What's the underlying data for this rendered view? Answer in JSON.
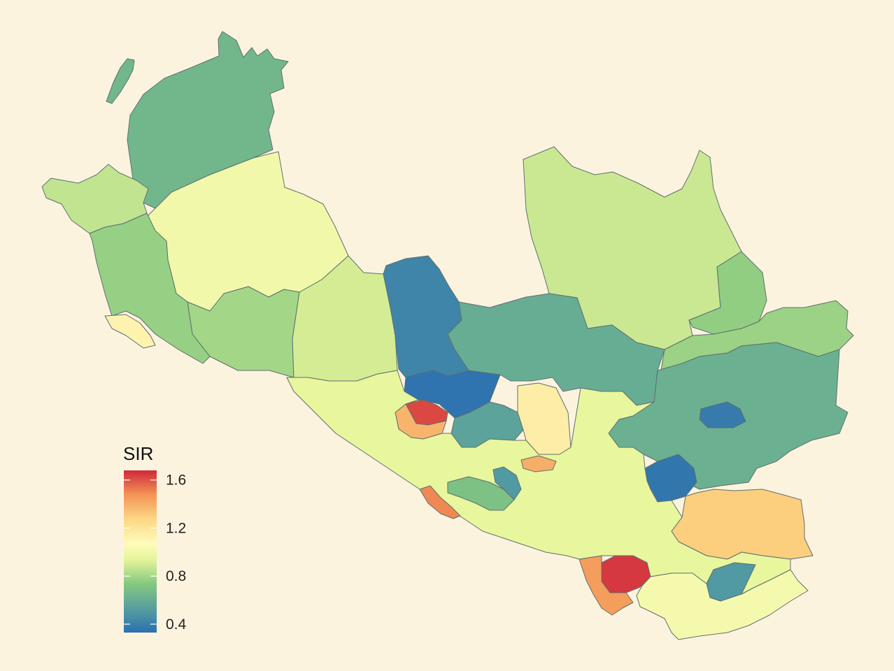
{
  "legend": {
    "title": "SIR",
    "ticks": [
      {
        "value": 1.6,
        "label": "1.6"
      },
      {
        "value": 1.2,
        "label": "1.2"
      },
      {
        "value": 0.8,
        "label": "0.8"
      },
      {
        "value": 0.4,
        "label": "0.4"
      }
    ],
    "range": [
      0.33,
      1.68
    ],
    "gradient_colors": [
      "#2b6fb0",
      "#4f97a4",
      "#85c87f",
      "#e6f59a",
      "#fffbbb",
      "#fcd784",
      "#f49456",
      "#d0283a"
    ]
  },
  "regions": [
    {
      "name": "north-island",
      "sir": 0.65
    },
    {
      "name": "northwest-large",
      "sir": 0.65
    },
    {
      "name": "west-tip",
      "sir": 0.86
    },
    {
      "name": "west-cream",
      "sir": 1.0
    },
    {
      "name": "west-mid-green",
      "sir": 0.8
    },
    {
      "name": "west-coast-lower",
      "sir": 0.77
    },
    {
      "name": "west-coast-small",
      "sir": 1.12
    },
    {
      "name": "center-west-yellow",
      "sir": 0.9
    },
    {
      "name": "center-blue",
      "sir": 0.42
    },
    {
      "name": "center-blue-south",
      "sir": 0.35
    },
    {
      "name": "northeast-large",
      "sir": 0.88
    },
    {
      "name": "east-green-upper",
      "sir": 0.76
    },
    {
      "name": "central-green",
      "sir": 0.6
    },
    {
      "name": "central-teal",
      "sir": 0.55
    },
    {
      "name": "central-orange",
      "sir": 1.15
    },
    {
      "name": "red-cluster-west",
      "sir": 1.62
    },
    {
      "name": "orange-west",
      "sir": 1.38
    },
    {
      "name": "east-green-mid",
      "sir": 0.78
    },
    {
      "name": "east-green",
      "sir": 0.62
    },
    {
      "name": "east-blue",
      "sir": 0.38
    },
    {
      "name": "southeast-blue",
      "sir": 0.36
    },
    {
      "name": "southeast-orange",
      "sir": 1.3
    },
    {
      "name": "south-red",
      "sir": 1.65
    },
    {
      "name": "south-orange",
      "sir": 1.45
    },
    {
      "name": "south-teal",
      "sir": 0.5
    },
    {
      "name": "south-cream",
      "sir": 1.02
    },
    {
      "name": "coastal-band",
      "sir": 0.95
    },
    {
      "name": "coastal-green",
      "sir": 0.7
    },
    {
      "name": "coastal-red",
      "sir": 1.5
    },
    {
      "name": "inner-teal",
      "sir": 0.5
    },
    {
      "name": "inner-orange",
      "sir": 1.4
    }
  ]
}
